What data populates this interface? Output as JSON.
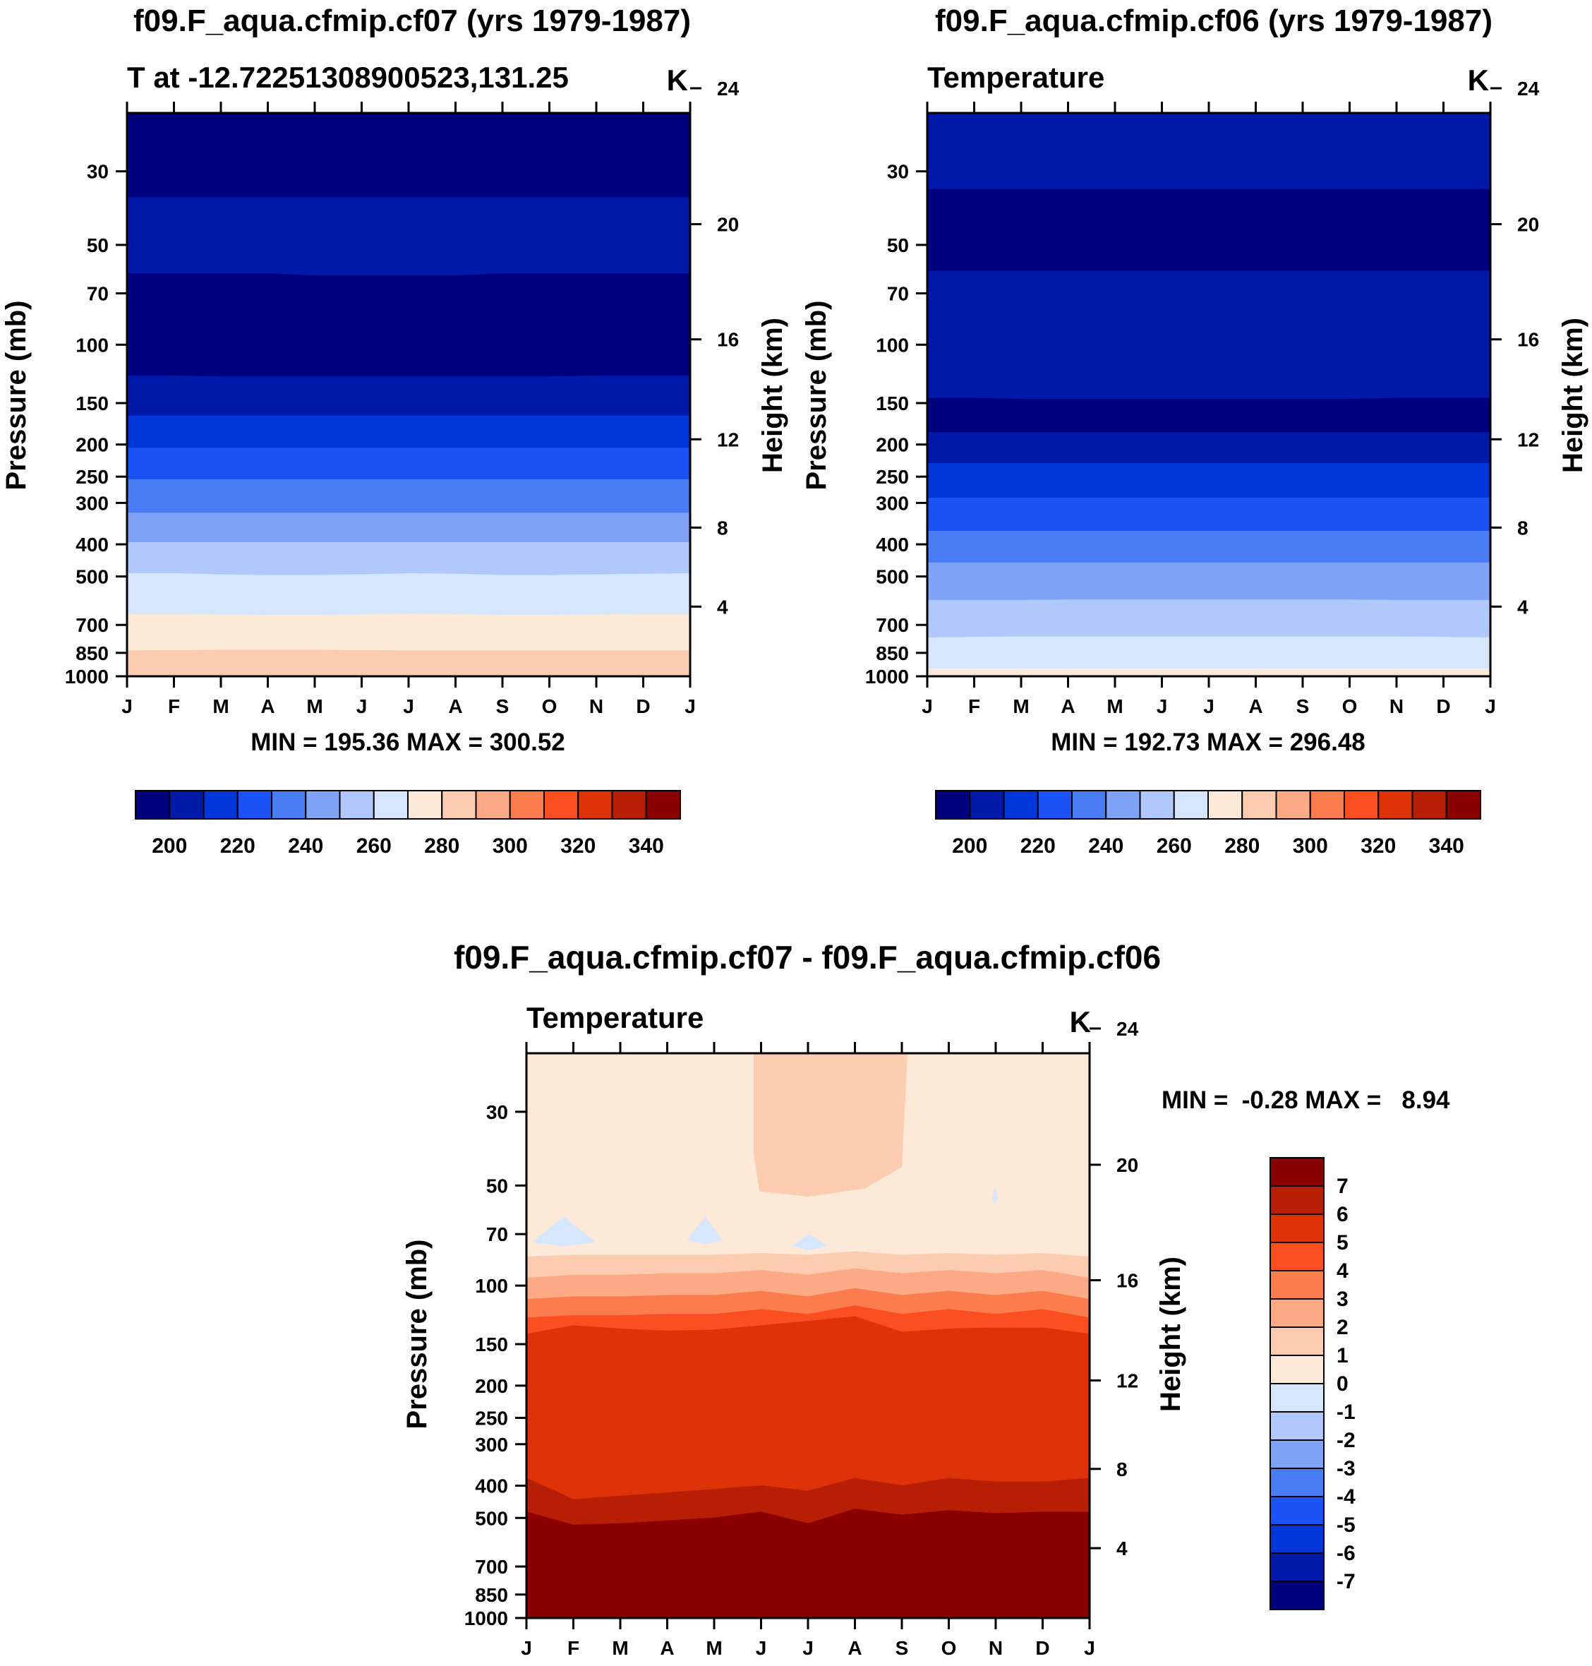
{
  "colors": {
    "temp_levels": [
      "#00007f",
      "#0019a8",
      "#0036d9",
      "#1a52f5",
      "#4a7cf5",
      "#7fa3f7",
      "#b0c8fb",
      "#d6e6fc",
      "#fde9d8",
      "#fccbb0",
      "#fbaa85",
      "#fb7d4e",
      "#fb4f22",
      "#de3209",
      "#b71f04",
      "#8a0000"
    ],
    "diff_levels": [
      "#00007f",
      "#0019a8",
      "#0036d9",
      "#1a52f5",
      "#4a7cf5",
      "#7fa3f7",
      "#b0c8fb",
      "#d6e6fc",
      "#fde9d8",
      "#fccbb0",
      "#fbaa85",
      "#fb7d4e",
      "#fb4f22",
      "#de3209",
      "#b71f04",
      "#8a0000"
    ]
  },
  "chart_data": [
    {
      "id": "p1",
      "type": "heatmap",
      "title": "f09.F_aqua.cfmip.cf07 (yrs 1979-1987)",
      "subtitle_left": "T at -12.72251308900523,131.25",
      "units": "K",
      "ylabel": "Pressure (mb)",
      "y2label": "Height (km)",
      "xlabel": "",
      "months": [
        "J",
        "F",
        "M",
        "A",
        "M",
        "J",
        "J",
        "A",
        "S",
        "O",
        "N",
        "D",
        "J"
      ],
      "pressure_ticks": [
        30,
        50,
        70,
        100,
        150,
        200,
        250,
        300,
        400,
        500,
        700,
        850,
        1000
      ],
      "height_ticks": [
        4,
        8,
        12,
        16,
        20,
        24
      ],
      "ylim": [
        20,
        1000
      ],
      "stats": "MIN = 195.36 MAX = 300.52",
      "min": 195.36,
      "max": 300.52,
      "contour_boundaries_mb": [
        [
          36,
          36,
          36,
          36,
          36,
          36,
          36,
          36,
          36,
          36,
          36,
          36,
          36
        ],
        [
          61,
          61,
          61,
          61,
          62,
          62,
          62,
          62,
          61,
          61,
          61,
          61,
          61
        ],
        [
          124,
          124,
          125,
          125,
          125,
          125,
          125,
          125,
          125,
          125,
          124,
          124,
          124
        ],
        [
          164,
          164,
          164,
          164,
          164,
          164,
          164,
          164,
          164,
          164,
          164,
          164,
          164
        ],
        [
          205,
          205,
          205,
          205,
          205,
          205,
          205,
          205,
          205,
          205,
          205,
          205,
          205
        ],
        [
          255,
          255,
          255,
          255,
          255,
          255,
          255,
          255,
          255,
          255,
          255,
          255,
          255
        ],
        [
          322,
          322,
          322,
          322,
          322,
          322,
          322,
          322,
          322,
          322,
          322,
          322,
          322
        ],
        [
          395,
          395,
          395,
          395,
          395,
          395,
          395,
          395,
          395,
          395,
          395,
          395,
          395
        ],
        [
          490,
          490,
          494,
          496,
          496,
          494,
          490,
          492,
          496,
          496,
          494,
          492,
          490
        ],
        [
          650,
          650,
          652,
          654,
          654,
          652,
          648,
          650,
          654,
          654,
          652,
          650,
          650
        ],
        [
          838,
          836,
          834,
          834,
          834,
          836,
          838,
          838,
          838,
          838,
          838,
          838,
          838
        ]
      ],
      "band_level_index": [
        0,
        1,
        0,
        1,
        2,
        3,
        4,
        5,
        6,
        7,
        8,
        9,
        10
      ],
      "colorbar": {
        "ticks": [
          200,
          220,
          240,
          260,
          280,
          300,
          320,
          340
        ],
        "start": 190,
        "step": 10,
        "n": 16
      }
    },
    {
      "id": "p2",
      "type": "heatmap",
      "title": "f09.F_aqua.cfmip.cf06 (yrs 1979-1987)",
      "subtitle_left": "Temperature",
      "units": "K",
      "ylabel": "Pressure (mb)",
      "y2label": "Height (km)",
      "xlabel": "",
      "months": [
        "J",
        "F",
        "M",
        "A",
        "M",
        "J",
        "J",
        "A",
        "S",
        "O",
        "N",
        "D",
        "J"
      ],
      "pressure_ticks": [
        30,
        50,
        70,
        100,
        150,
        200,
        250,
        300,
        400,
        500,
        700,
        850,
        1000
      ],
      "height_ticks": [
        4,
        8,
        12,
        16,
        20,
        24
      ],
      "ylim": [
        20,
        1000
      ],
      "stats": "MIN = 192.73 MAX = 296.48",
      "min": 192.73,
      "max": 296.48,
      "contour_boundaries_mb": [
        [
          34,
          34,
          34,
          34,
          34,
          34,
          34,
          34,
          34,
          34,
          34,
          34,
          34
        ],
        [
          60,
          60,
          60,
          60,
          60,
          60,
          60,
          60,
          60,
          60,
          60,
          60,
          60
        ],
        [
          145,
          145,
          146,
          146,
          146,
          146,
          146,
          146,
          146,
          146,
          145,
          145,
          145
        ],
        [
          184,
          184,
          184,
          184,
          184,
          184,
          184,
          184,
          184,
          184,
          184,
          184,
          184
        ],
        [
          228,
          228,
          228,
          228,
          228,
          228,
          228,
          228,
          228,
          228,
          228,
          228,
          228
        ],
        [
          290,
          290,
          290,
          290,
          290,
          290,
          290,
          290,
          290,
          290,
          290,
          290,
          290
        ],
        [
          365,
          365,
          365,
          365,
          365,
          365,
          365,
          365,
          365,
          365,
          365,
          365,
          365
        ],
        [
          455,
          455,
          455,
          455,
          455,
          455,
          455,
          455,
          455,
          455,
          455,
          455,
          455
        ],
        [
          590,
          590,
          590,
          588,
          588,
          588,
          588,
          588,
          588,
          588,
          590,
          590,
          590
        ],
        [
          765,
          762,
          760,
          760,
          760,
          760,
          760,
          760,
          760,
          760,
          760,
          762,
          765
        ],
        [
          950,
          950,
          950,
          950,
          950,
          950,
          950,
          950,
          950,
          950,
          950,
          950,
          950
        ]
      ],
      "band_level_index": [
        1,
        0,
        1,
        0,
        1,
        2,
        3,
        4,
        5,
        6,
        7,
        8,
        9
      ],
      "colorbar": {
        "ticks": [
          200,
          220,
          240,
          260,
          280,
          300,
          320,
          340
        ],
        "start": 190,
        "step": 10,
        "n": 16
      }
    },
    {
      "id": "p3",
      "type": "heatmap",
      "title": "f09.F_aqua.cfmip.cf07 - f09.F_aqua.cfmip.cf06",
      "subtitle_left": "Temperature",
      "units": "K",
      "ylabel": "Pressure (mb)",
      "y2label": "Height (km)",
      "xlabel": "",
      "months": [
        "J",
        "F",
        "M",
        "A",
        "M",
        "J",
        "J",
        "A",
        "S",
        "O",
        "N",
        "D",
        "J"
      ],
      "pressure_ticks": [
        30,
        50,
        70,
        100,
        150,
        200,
        250,
        300,
        400,
        500,
        700,
        850,
        1000
      ],
      "height_ticks": [
        4,
        8,
        12,
        16,
        20,
        24
      ],
      "ylim": [
        20,
        1000
      ],
      "stats": "MIN =  -0.28 MAX =   8.94",
      "min": -0.28,
      "max": 8.94,
      "contour_boundaries_mb": [
        [
          82,
          81,
          81,
          81,
          81,
          80,
          81,
          79,
          81,
          80,
          81,
          80,
          82
        ],
        [
          95,
          93,
          93,
          92,
          92,
          90,
          93,
          89,
          92,
          90,
          92,
          90,
          95
        ],
        [
          110,
          108,
          108,
          107,
          107,
          104,
          108,
          102,
          107,
          104,
          107,
          104,
          110
        ],
        [
          125,
          123,
          123,
          122,
          122,
          118,
          122,
          115,
          122,
          118,
          122,
          118,
          125
        ],
        [
          140,
          132,
          135,
          137,
          136,
          132,
          128,
          124,
          138,
          135,
          134,
          134,
          140
        ],
        [
          380,
          440,
          430,
          420,
          410,
          400,
          415,
          380,
          400,
          380,
          390,
          390,
          380
        ],
        [
          480,
          525,
          520,
          510,
          500,
          480,
          520,
          470,
          490,
          475,
          485,
          480,
          480
        ]
      ],
      "band_level_index": [
        8,
        9,
        10,
        11,
        12,
        13,
        14,
        15
      ],
      "regions": {
        "warm_patch": "J to S above ~55 mb, diff 1 to 2 K",
        "cool_patches": "small patches near 70 mb, diff -1 to 0 K"
      },
      "colorbar": {
        "ticks": [
          -7,
          -6,
          -5,
          -4,
          -3,
          -2,
          -1,
          0,
          1,
          2,
          3,
          4,
          5,
          6,
          7
        ],
        "start": -8,
        "step": 1,
        "n": 16
      }
    }
  ]
}
